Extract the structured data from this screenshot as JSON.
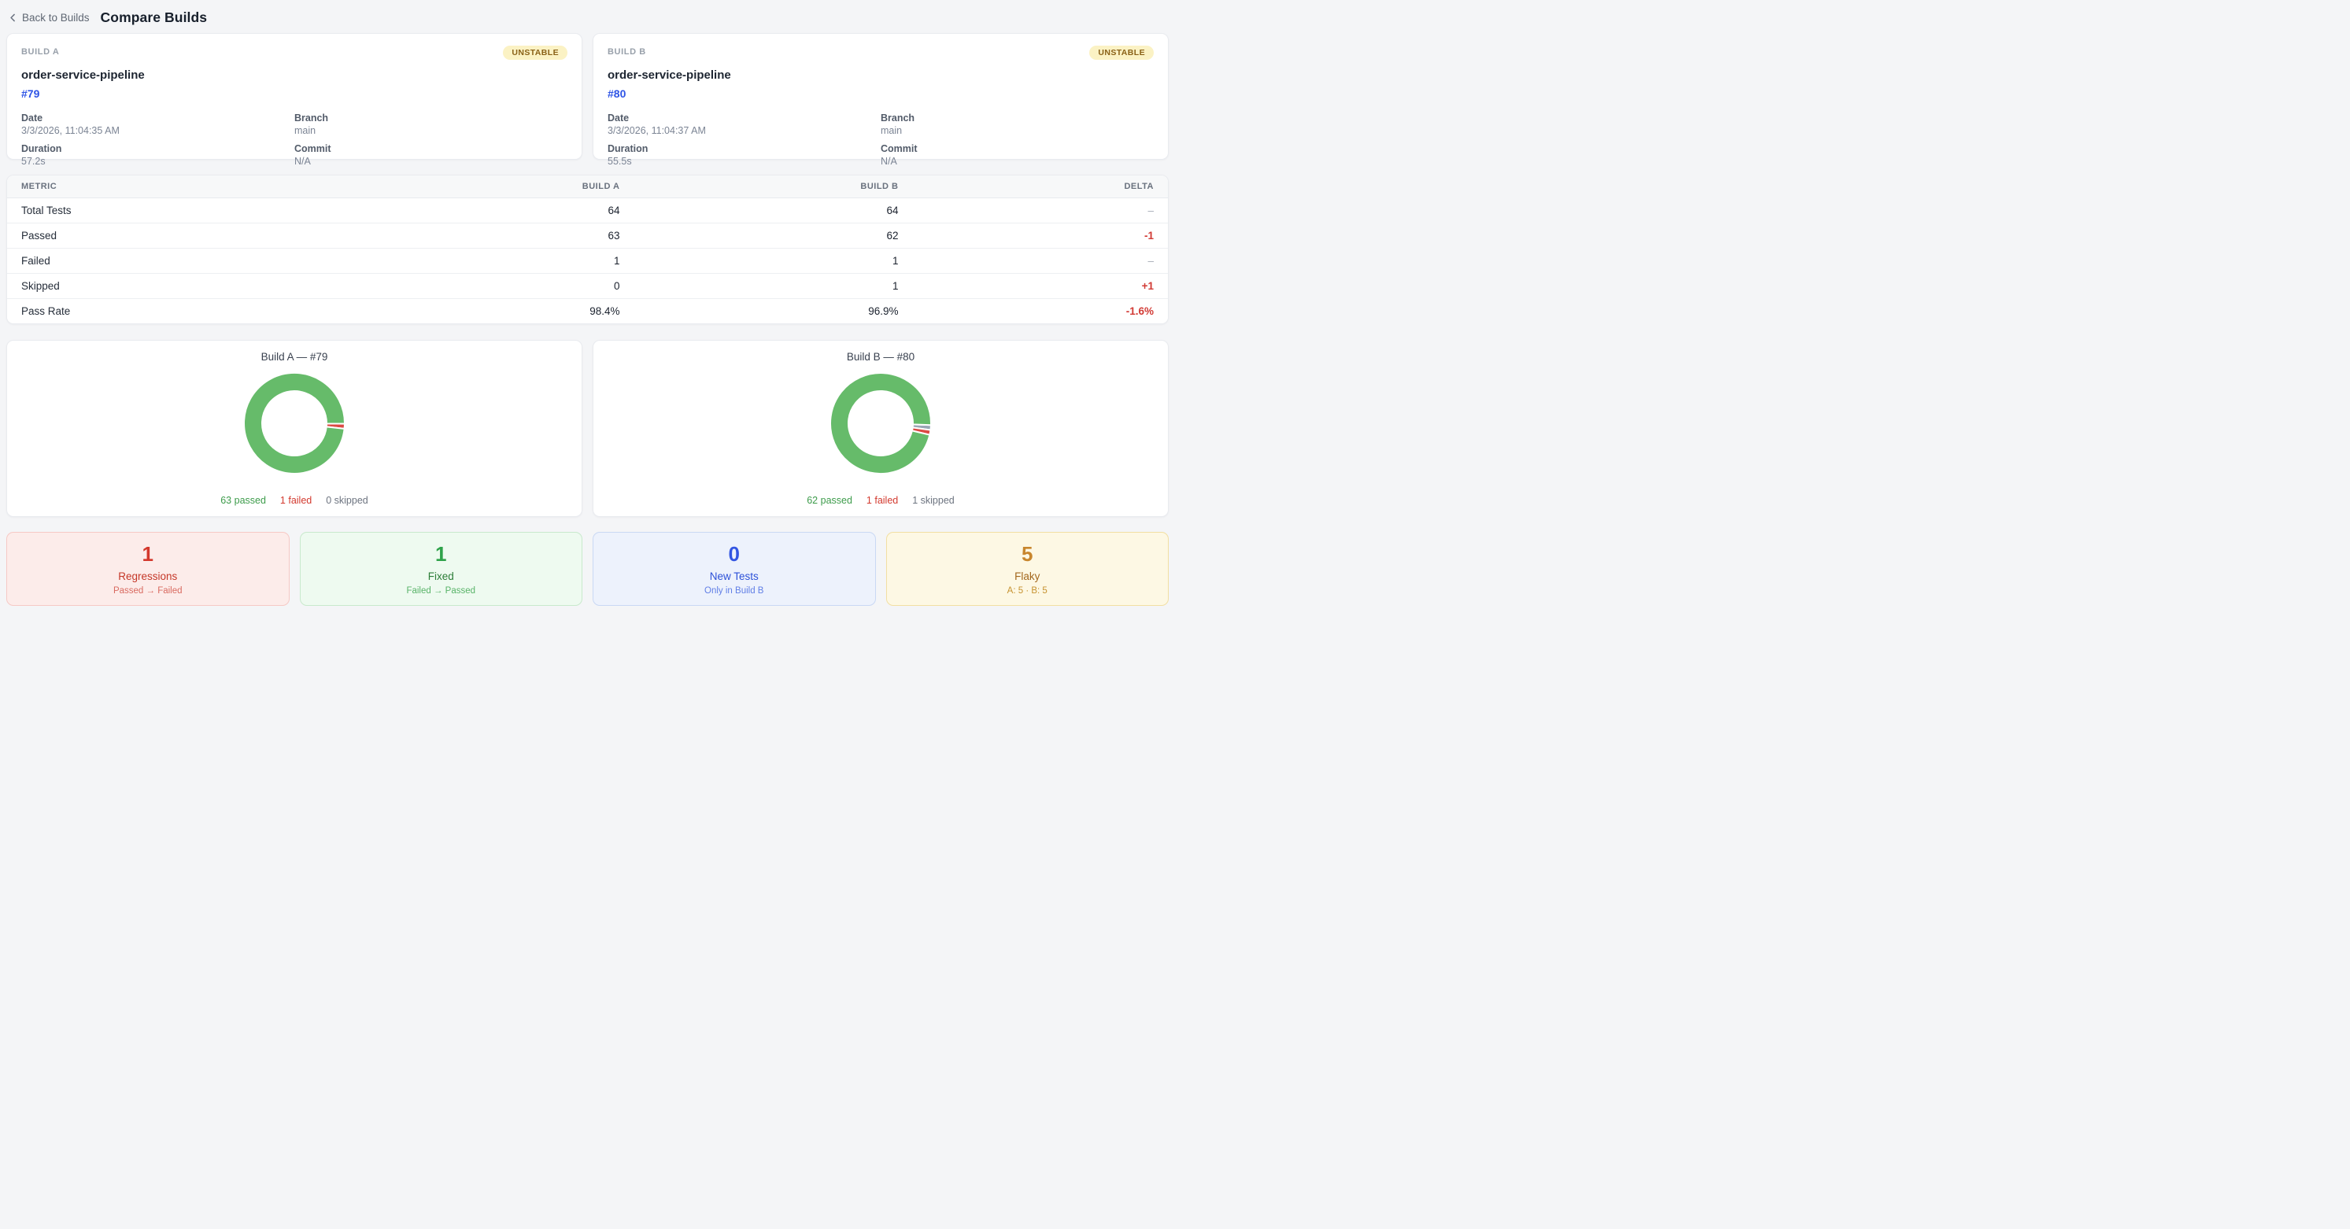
{
  "colors": {
    "page_bg": "#f4f5f7",
    "accent_blue": "#2e54e6",
    "red": "#d23b35",
    "badge_fg": "#8a6116",
    "badge_bg": "#fbf2c4"
  },
  "header": {
    "back_label": "Back to Builds",
    "title": "Compare Builds"
  },
  "builds": [
    {
      "panel_label": "BUILD A",
      "status": "UNSTABLE",
      "name": "order-service-pipeline",
      "number": "#79",
      "fields": [
        {
          "label": "Date",
          "value": "3/3/2026, 11:04:35 AM"
        },
        {
          "label": "Branch",
          "value": "main"
        },
        {
          "label": "Duration",
          "value": "57.2s"
        },
        {
          "label": "Commit",
          "value": "N/A"
        }
      ]
    },
    {
      "panel_label": "BUILD B",
      "status": "UNSTABLE",
      "name": "order-service-pipeline",
      "number": "#80",
      "fields": [
        {
          "label": "Date",
          "value": "3/3/2026, 11:04:37 AM"
        },
        {
          "label": "Branch",
          "value": "main"
        },
        {
          "label": "Duration",
          "value": "55.5s"
        },
        {
          "label": "Commit",
          "value": "N/A"
        }
      ]
    }
  ],
  "metrics_table": {
    "columns": [
      "METRIC",
      "BUILD A",
      "BUILD B",
      "DELTA"
    ],
    "rows": [
      {
        "metric": "Total Tests",
        "a": "64",
        "b": "64",
        "delta": "–",
        "delta_type": "neutral"
      },
      {
        "metric": "Passed",
        "a": "63",
        "b": "62",
        "delta": "-1",
        "delta_type": "negative"
      },
      {
        "metric": "Failed",
        "a": "1",
        "b": "1",
        "delta": "–",
        "delta_type": "neutral"
      },
      {
        "metric": "Skipped",
        "a": "0",
        "b": "1",
        "delta": "+1",
        "delta_type": "negative"
      },
      {
        "metric": "Pass Rate",
        "a": "98.4%",
        "b": "96.9%",
        "delta": "-1.6%",
        "delta_type": "negative"
      }
    ]
  },
  "chart_data": [
    {
      "type": "pie",
      "title": "Build A — #79",
      "total": 64,
      "rotation_deg": 90.5,
      "slices": [
        {
          "label": "passed",
          "value": 63,
          "color": "#66bb6a"
        },
        {
          "label": "failed",
          "value": 1,
          "color": "#dc4a44"
        },
        {
          "label": "skipped",
          "value": 0,
          "color": "#9aa6b5"
        }
      ],
      "legend": [
        {
          "text": "63 passed",
          "color": "#3d9c4b"
        },
        {
          "text": "1 failed",
          "color": "#d3392e"
        },
        {
          "text": "0 skipped",
          "color": "#6d7480"
        }
      ]
    },
    {
      "type": "pie",
      "title": "Build B — #80",
      "total": 64,
      "rotation_deg": 92,
      "slices": [
        {
          "label": "passed",
          "value": 62,
          "color": "#66bb6a"
        },
        {
          "label": "failed",
          "value": 1,
          "color": "#dc4a44"
        },
        {
          "label": "skipped",
          "value": 1,
          "color": "#9aa6b5"
        }
      ],
      "legend": [
        {
          "text": "62 passed",
          "color": "#3d9c4b"
        },
        {
          "text": "1 failed",
          "color": "#d3392e"
        },
        {
          "text": "1 skipped",
          "color": "#6d7480"
        }
      ]
    }
  ],
  "summary_cards": [
    {
      "value": "1",
      "label": "Regressions",
      "sublabel": "Passed → Failed",
      "colors": {
        "bg": "#fcecea",
        "border": "#f6c9c5",
        "value": "#d3382c",
        "label": "#c53728",
        "sub": "#d96a60"
      }
    },
    {
      "value": "1",
      "label": "Fixed",
      "sublabel": "Failed → Passed",
      "colors": {
        "bg": "#eefaf0",
        "border": "#c8e9cc",
        "value": "#2ea24a",
        "label": "#2c7d38",
        "sub": "#58b368"
      }
    },
    {
      "value": "0",
      "label": "New Tests",
      "sublabel": "Only in Build B",
      "colors": {
        "bg": "#edf2fc",
        "border": "#c9d8f4",
        "value": "#3356e2",
        "label": "#2d51d8",
        "sub": "#617fe6"
      }
    },
    {
      "value": "5",
      "label": "Flaky",
      "sublabel": "A: 5 · B: 5",
      "colors": {
        "bg": "#fdf8e4",
        "border": "#f2dfa2",
        "value": "#c8862d",
        "label": "#a3671d",
        "sub": "#c6922f"
      }
    }
  ]
}
